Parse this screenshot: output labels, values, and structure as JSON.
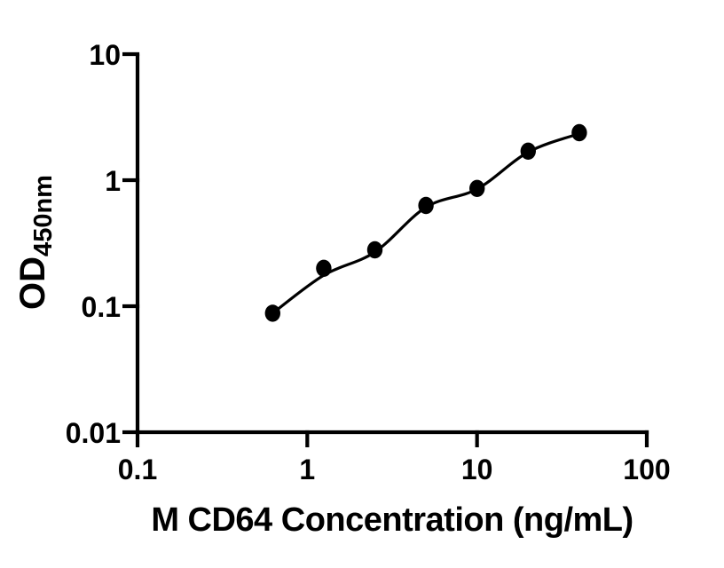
{
  "figure": {
    "background_color": "#ffffff",
    "ink_color": "#000000"
  },
  "chart_data": {
    "type": "scatter",
    "subtype": "elisa-standard-curve",
    "title": "",
    "xlabel": "M CD64 Concentration (ng/mL)",
    "ylabel": "OD450nm",
    "ylabel_main": "OD",
    "ylabel_sub": "450nm",
    "x_scale": "log10",
    "y_scale": "log10",
    "xlim": [
      0.1,
      100
    ],
    "ylim": [
      0.01,
      10
    ],
    "grid": false,
    "legend": "none",
    "marker_color": "#000000",
    "line_color": "#000000",
    "x_ticks": [
      {
        "value": 0.1,
        "label": "0.1"
      },
      {
        "value": 1,
        "label": "1"
      },
      {
        "value": 10,
        "label": "10"
      },
      {
        "value": 100,
        "label": "100"
      }
    ],
    "y_ticks": [
      {
        "value": 10,
        "label": "10"
      },
      {
        "value": 1,
        "label": "1"
      },
      {
        "value": 0.1,
        "label": "0.1"
      },
      {
        "value": 0.01,
        "label": "0.01"
      }
    ],
    "points": [
      {
        "x": 0.625,
        "y": 0.088
      },
      {
        "x": 1.25,
        "y": 0.2
      },
      {
        "x": 2.5,
        "y": 0.28
      },
      {
        "x": 5,
        "y": 0.63
      },
      {
        "x": 10,
        "y": 0.86
      },
      {
        "x": 20,
        "y": 1.7
      },
      {
        "x": 40,
        "y": 2.38
      }
    ],
    "trend": [
      {
        "x": 0.625,
        "y": 0.088
      },
      {
        "x": 1.25,
        "y": 0.176
      },
      {
        "x": 2.5,
        "y": 0.269
      },
      {
        "x": 5,
        "y": 0.61
      },
      {
        "x": 10,
        "y": 0.85
      },
      {
        "x": 20,
        "y": 1.67
      },
      {
        "x": 40,
        "y": 2.34
      }
    ]
  }
}
